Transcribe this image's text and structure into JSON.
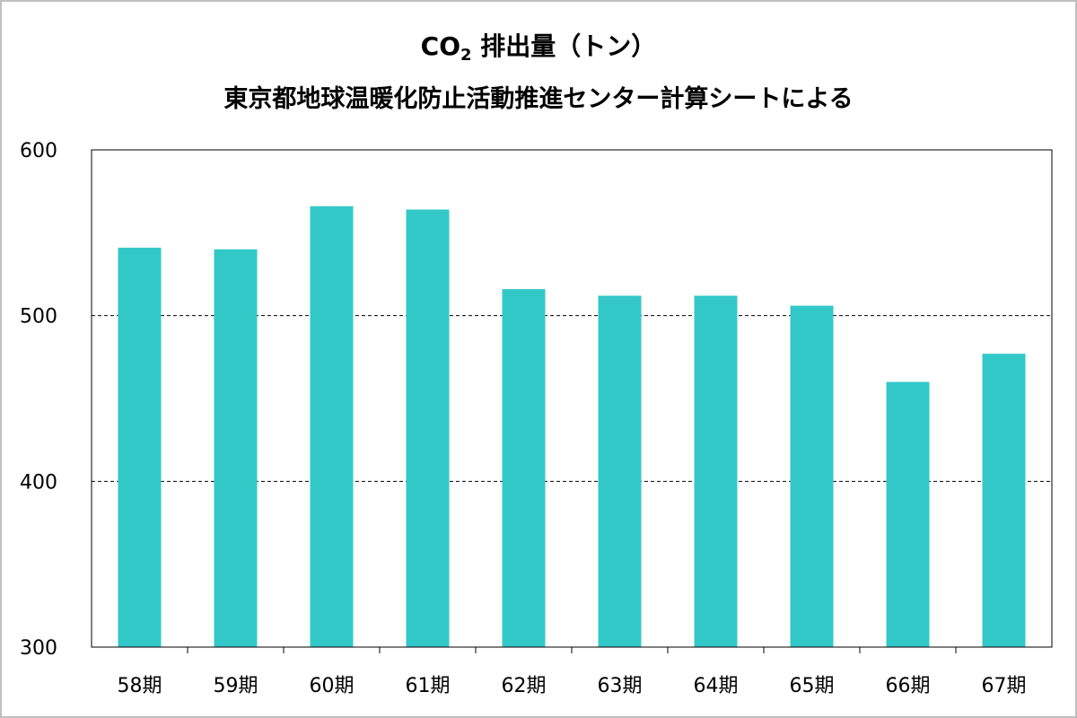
{
  "chart_data": {
    "type": "bar",
    "title_line1_main": "CO",
    "title_line1_sub": "2",
    "title_line1_rest": " 排出量（トン）",
    "title_line2": "東京都地球温暖化防止活動推進センター計算シートによる",
    "categories": [
      "58期",
      "59期",
      "60期",
      "61期",
      "62期",
      "63期",
      "64期",
      "65期",
      "66期",
      "67期"
    ],
    "values": [
      541,
      540,
      566,
      564,
      516,
      512,
      512,
      506,
      460,
      477
    ],
    "ylim": [
      300,
      600
    ],
    "yticks": [
      300,
      400,
      500,
      600
    ],
    "grid": "dashed horizontal at 400 and 500",
    "bar_color": "#33c8c8"
  }
}
